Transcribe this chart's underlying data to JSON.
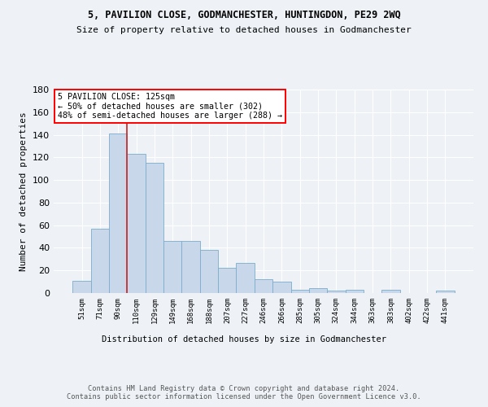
{
  "title1": "5, PAVILION CLOSE, GODMANCHESTER, HUNTINGDON, PE29 2WQ",
  "title2": "Size of property relative to detached houses in Godmanchester",
  "xlabel": "Distribution of detached houses by size in Godmanchester",
  "ylabel": "Number of detached properties",
  "categories": [
    "51sqm",
    "71sqm",
    "90sqm",
    "110sqm",
    "129sqm",
    "149sqm",
    "168sqm",
    "188sqm",
    "207sqm",
    "227sqm",
    "246sqm",
    "266sqm",
    "285sqm",
    "305sqm",
    "324sqm",
    "344sqm",
    "363sqm",
    "383sqm",
    "402sqm",
    "422sqm",
    "441sqm"
  ],
  "values": [
    11,
    57,
    141,
    123,
    115,
    46,
    46,
    38,
    22,
    27,
    12,
    10,
    3,
    4,
    2,
    3,
    0,
    3,
    0,
    0,
    2
  ],
  "bar_color": "#c8d8ea",
  "bar_edge_color": "#7aadcc",
  "red_line_x": 2.5,
  "annotation_line1": "5 PAVILION CLOSE: 125sqm",
  "annotation_line2": "← 50% of detached houses are smaller (302)",
  "annotation_line3": "48% of semi-detached houses are larger (288) →",
  "annotation_box_color": "white",
  "annotation_box_edge": "red",
  "ylim": [
    0,
    180
  ],
  "yticks": [
    0,
    20,
    40,
    60,
    80,
    100,
    120,
    140,
    160,
    180
  ],
  "footer": "Contains HM Land Registry data © Crown copyright and database right 2024.\nContains public sector information licensed under the Open Government Licence v3.0.",
  "bg_color": "#eef2f7",
  "plot_bg_color": "#eef2f7",
  "grid_color": "#ffffff",
  "red_line_color": "#cc2222",
  "title1_fontsize": 8.5,
  "title2_fontsize": 8.0
}
